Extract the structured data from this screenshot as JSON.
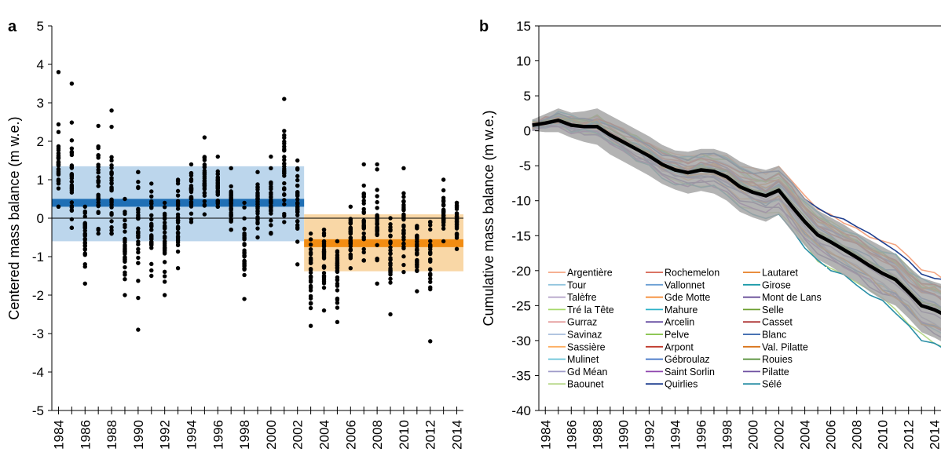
{
  "chart_data": [
    {
      "panel": "a",
      "type": "scatter",
      "ylabel": "Centered mass balance (m w.e.)",
      "ylim": [
        -5,
        5
      ],
      "yticks": [
        5,
        4,
        3,
        2,
        1,
        0,
        -1,
        -2,
        -3,
        -4,
        -5
      ],
      "xlim": [
        1983.5,
        2014.5
      ],
      "xtick_labels": [
        "1984",
        "1986",
        "1988",
        "1990",
        "1992",
        "1994",
        "1996",
        "1998",
        "2000",
        "2002",
        "2004",
        "2006",
        "2008",
        "2010",
        "2012",
        "2014"
      ],
      "grid": false,
      "periods": [
        {
          "x0": 1983.5,
          "x1": 2002.5,
          "mean": 0.4,
          "upper": 1.35,
          "lower": -0.6,
          "fill": "#bcd6ec",
          "line": "#1f6fb5"
        },
        {
          "x0": 2002.5,
          "x1": 2014.5,
          "mean": -0.65,
          "upper": 0.1,
          "lower": -1.38,
          "fill": "#f9d7a6",
          "line": "#f28c12"
        }
      ],
      "year_stats": [
        {
          "x": 1984,
          "min": 0.3,
          "max": 3.8,
          "mean": 1.35
        },
        {
          "x": 1985,
          "min": -0.25,
          "max": 3.5,
          "mean": 0.95
        },
        {
          "x": 1986,
          "min": -1.7,
          "max": 0.3,
          "mean": -0.5
        },
        {
          "x": 1987,
          "min": -0.4,
          "max": 2.4,
          "mean": 0.75
        },
        {
          "x": 1988,
          "min": -0.4,
          "max": 2.8,
          "mean": 0.8
        },
        {
          "x": 1989,
          "min": -2.0,
          "max": 0.5,
          "mean": -0.7
        },
        {
          "x": 1990,
          "min": -2.9,
          "max": 1.2,
          "mean": -0.6
        },
        {
          "x": 1991,
          "min": -1.5,
          "max": 0.9,
          "mean": -0.3
        },
        {
          "x": 1992,
          "min": -2.0,
          "max": 0.4,
          "mean": -0.4
        },
        {
          "x": 1993,
          "min": -1.3,
          "max": 1.0,
          "mean": 0.0
        },
        {
          "x": 1994,
          "min": -0.1,
          "max": 1.4,
          "mean": 0.6
        },
        {
          "x": 1995,
          "min": 0.1,
          "max": 2.1,
          "mean": 1.0
        },
        {
          "x": 1996,
          "min": 0.3,
          "max": 1.6,
          "mean": 0.8
        },
        {
          "x": 1997,
          "min": -0.3,
          "max": 1.3,
          "mean": 0.4
        },
        {
          "x": 1998,
          "min": -2.1,
          "max": 0.4,
          "mean": -0.8
        },
        {
          "x": 1999,
          "min": -0.5,
          "max": 1.2,
          "mean": 0.3
        },
        {
          "x": 2000,
          "min": -0.4,
          "max": 1.6,
          "mean": 0.4
        },
        {
          "x": 2001,
          "min": -0.1,
          "max": 3.1,
          "mean": 1.3
        },
        {
          "x": 2002,
          "min": -1.2,
          "max": 1.5,
          "mean": 0.4
        },
        {
          "x": 2003,
          "min": -2.8,
          "max": -0.4,
          "mean": -1.4
        },
        {
          "x": 2004,
          "min": -2.4,
          "max": -0.3,
          "mean": -1.1
        },
        {
          "x": 2005,
          "min": -2.7,
          "max": -0.6,
          "mean": -1.4
        },
        {
          "x": 2006,
          "min": -1.3,
          "max": 0.3,
          "mean": -0.5
        },
        {
          "x": 2007,
          "min": -1.1,
          "max": 1.4,
          "mean": -0.1
        },
        {
          "x": 2008,
          "min": -1.7,
          "max": 1.4,
          "mean": -0.2
        },
        {
          "x": 2009,
          "min": -2.5,
          "max": 0.0,
          "mean": -1.0
        },
        {
          "x": 2010,
          "min": -1.4,
          "max": 1.3,
          "mean": -0.3
        },
        {
          "x": 2011,
          "min": -1.9,
          "max": -0.2,
          "mean": -0.9
        },
        {
          "x": 2012,
          "min": -3.2,
          "max": -0.1,
          "mean": -1.0
        },
        {
          "x": 2013,
          "min": -0.6,
          "max": 1.0,
          "mean": 0.1
        },
        {
          "x": 2014,
          "min": -0.8,
          "max": 0.4,
          "mean": -0.15
        }
      ]
    },
    {
      "panel": "b",
      "type": "line",
      "ylabel": "Cumulative mass balance (m w.e.)",
      "ylim": [
        -40,
        15
      ],
      "yticks": [
        15,
        10,
        5,
        0,
        -5,
        -10,
        -15,
        -20,
        -25,
        -30,
        -35,
        -40
      ],
      "xlim": [
        1983.5,
        2014.5
      ],
      "xtick_labels": [
        "1984",
        "1986",
        "1988",
        "1990",
        "1992",
        "1994",
        "1996",
        "1998",
        "2000",
        "2002",
        "2004",
        "2006",
        "2008",
        "2010",
        "2012",
        "2014"
      ],
      "grid": false,
      "legend": {
        "position": "bottom-left",
        "columns": [
          [
            {
              "name": "Argentière",
              "color": "#f4a582"
            },
            {
              "name": "Tour",
              "color": "#92c5de"
            },
            {
              "name": "Talèfre",
              "color": "#b2a1c7"
            },
            {
              "name": "Tré la Tête",
              "color": "#a6d96a"
            },
            {
              "name": "Gurraz",
              "color": "#e6a0a0"
            },
            {
              "name": "Savinaz",
              "color": "#a6bddb"
            },
            {
              "name": "Sassière",
              "color": "#fdae61"
            },
            {
              "name": "Mulinet",
              "color": "#66c2d7"
            },
            {
              "name": "Gd Méan",
              "color": "#9e9ac8"
            },
            {
              "name": "Baounet",
              "color": "#b8d88b"
            }
          ],
          [
            {
              "name": "Rochemelon",
              "color": "#d6604d"
            },
            {
              "name": "Vallonnet",
              "color": "#6a9fd4"
            },
            {
              "name": "Gde Motte",
              "color": "#f4862a"
            },
            {
              "name": "Mahure",
              "color": "#2bb1c7"
            },
            {
              "name": "Arcelin",
              "color": "#6a51a3"
            },
            {
              "name": "Pelve",
              "color": "#7fbf3f"
            },
            {
              "name": "Arpont",
              "color": "#c0392b"
            },
            {
              "name": "Gébroulaz",
              "color": "#3a6fc4"
            },
            {
              "name": "Saint Sorlin",
              "color": "#8e44ad"
            },
            {
              "name": "Quirlies",
              "color": "#1f3f8f"
            }
          ],
          [
            {
              "name": "Lautaret",
              "color": "#e67e22"
            },
            {
              "name": "Girose",
              "color": "#1a9aa8"
            },
            {
              "name": "Mont de Lans",
              "color": "#5b3f8f"
            },
            {
              "name": "Selle",
              "color": "#6b9e2e"
            },
            {
              "name": "Casset",
              "color": "#b03a3a"
            },
            {
              "name": "Blanc",
              "color": "#2f5fa8"
            },
            {
              "name": "Val. Pilatte",
              "color": "#d9731a"
            },
            {
              "name": "Rouies",
              "color": "#4d8a2e"
            },
            {
              "name": "Pilatte",
              "color": "#6e4fa0"
            },
            {
              "name": "Sélé",
              "color": "#2a8fa6"
            }
          ]
        ]
      },
      "mean_series": {
        "x": [
          1983,
          1984,
          1985,
          1986,
          1987,
          1988,
          1989,
          1990,
          1991,
          1992,
          1993,
          1994,
          1995,
          1996,
          1997,
          1998,
          1999,
          2000,
          2001,
          2002,
          2003,
          2004,
          2005,
          2006,
          2007,
          2008,
          2009,
          2010,
          2011,
          2012,
          2013,
          2014,
          2015
        ],
        "y": [
          0.8,
          1.1,
          1.5,
          0.8,
          0.6,
          0.6,
          -0.6,
          -1.6,
          -2.6,
          -3.6,
          -4.8,
          -5.6,
          -6.0,
          -5.6,
          -5.8,
          -6.6,
          -8.0,
          -8.8,
          -9.3,
          -8.5,
          -10.8,
          -13.0,
          -14.9,
          -15.9,
          -17.0,
          -18.1,
          -19.3,
          -20.4,
          -21.3,
          -23.1,
          -25.0,
          -25.6,
          -26.5
        ],
        "color": "#000000"
      },
      "envelope": {
        "upper": [
          1.6,
          2.4,
          3.2,
          2.6,
          2.8,
          3.2,
          2.2,
          1.2,
          0.2,
          -0.8,
          -2.0,
          -2.8,
          -3.0,
          -2.6,
          -2.6,
          -3.2,
          -4.4,
          -5.2,
          -5.6,
          -5.0,
          -7.2,
          -9.6,
          -11.4,
          -12.4,
          -13.4,
          -14.6,
          -15.6,
          -16.6,
          -17.6,
          -19.4,
          -21.0,
          -21.6,
          -22.2
        ],
        "lower": [
          0.0,
          -0.2,
          -0.2,
          -1.0,
          -1.6,
          -2.0,
          -3.4,
          -4.4,
          -5.4,
          -6.4,
          -7.6,
          -8.4,
          -9.0,
          -8.6,
          -9.0,
          -10.0,
          -11.6,
          -12.4,
          -13.0,
          -12.0,
          -14.4,
          -16.4,
          -18.4,
          -19.4,
          -20.6,
          -21.6,
          -23.0,
          -24.2,
          -25.0,
          -26.8,
          -28.8,
          -29.6,
          -30.6
        ],
        "color": "#a6a6a6"
      }
    }
  ]
}
